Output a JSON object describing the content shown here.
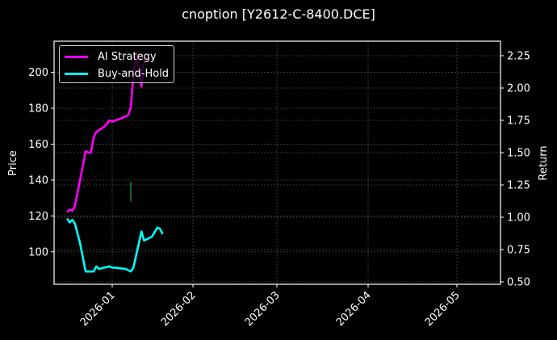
{
  "chart_data": {
    "type": "line",
    "title": "cnoption [Y2612-C-8400.DCE]",
    "xlabel": "",
    "ylabel": "Price",
    "ylabel_right": "Return",
    "x_tick_labels": [
      "2026-01",
      "2026-02",
      "2026-03",
      "2026-04",
      "2026-05"
    ],
    "y_ticks_left": [
      100,
      120,
      140,
      160,
      180,
      200
    ],
    "y_ticks_right": [
      "0.50",
      "0.75",
      "1.00",
      "1.25",
      "1.50",
      "1.75",
      "2.00",
      "2.25"
    ],
    "ylim_left": [
      82,
      218
    ],
    "ylim_right": [
      0.48,
      2.36
    ],
    "grid": true,
    "legend_position": "upper left",
    "background": "#000000",
    "series": [
      {
        "name": "AI Strategy",
        "axis": "right",
        "color": "#ff00ff",
        "points": [
          [
            "2025-12-15",
            1.04
          ],
          [
            "2025-12-16",
            1.06
          ],
          [
            "2025-12-17",
            1.05
          ],
          [
            "2025-12-18",
            1.09
          ],
          [
            "2025-12-22",
            1.51
          ],
          [
            "2025-12-23",
            1.5
          ],
          [
            "2025-12-24",
            1.5
          ],
          [
            "2025-12-25",
            1.62
          ],
          [
            "2025-12-26",
            1.66
          ],
          [
            "2025-12-29",
            1.7
          ],
          [
            "2025-12-31",
            1.75
          ],
          [
            "2026-01-01",
            1.74
          ],
          [
            "2026-01-05",
            1.77
          ],
          [
            "2026-01-07",
            1.79
          ],
          [
            "2026-01-08",
            1.85
          ],
          [
            "2026-01-09",
            2.1
          ],
          [
            "2026-01-10",
            2.26
          ],
          [
            "2026-01-12",
            2.01
          ],
          [
            "2026-01-13",
            2.22
          ],
          [
            "2026-01-14",
            2.24
          ]
        ]
      },
      {
        "name": "Buy-and-Hold",
        "axis": "right",
        "color": "#00ffff",
        "points": [
          [
            "2025-12-15",
            0.99
          ],
          [
            "2025-12-16",
            0.96
          ],
          [
            "2025-12-17",
            0.98
          ],
          [
            "2025-12-18",
            0.95
          ],
          [
            "2025-12-20",
            0.79
          ],
          [
            "2025-12-22",
            0.58
          ],
          [
            "2025-12-24",
            0.58
          ],
          [
            "2025-12-25",
            0.58
          ],
          [
            "2025-12-26",
            0.62
          ],
          [
            "2025-12-27",
            0.6
          ],
          [
            "2025-12-31",
            0.62
          ],
          [
            "2026-01-01",
            0.61
          ],
          [
            "2026-01-02",
            0.61
          ],
          [
            "2026-01-06",
            0.6
          ],
          [
            "2026-01-08",
            0.58
          ],
          [
            "2026-01-09",
            0.61
          ],
          [
            "2026-01-12",
            0.89
          ],
          [
            "2026-01-13",
            0.82
          ],
          [
            "2026-01-16",
            0.85
          ],
          [
            "2026-01-18",
            0.92
          ],
          [
            "2026-01-19",
            0.91
          ],
          [
            "2026-01-20",
            0.87
          ]
        ]
      }
    ],
    "candles": [
      {
        "date": "2026-01-08",
        "low": 128,
        "high": 139,
        "color": "#22aa22"
      }
    ]
  },
  "legend": {
    "items": [
      {
        "label": "AI Strategy",
        "color": "#ff00ff"
      },
      {
        "label": "Buy-and-Hold",
        "color": "#00ffff"
      }
    ]
  }
}
